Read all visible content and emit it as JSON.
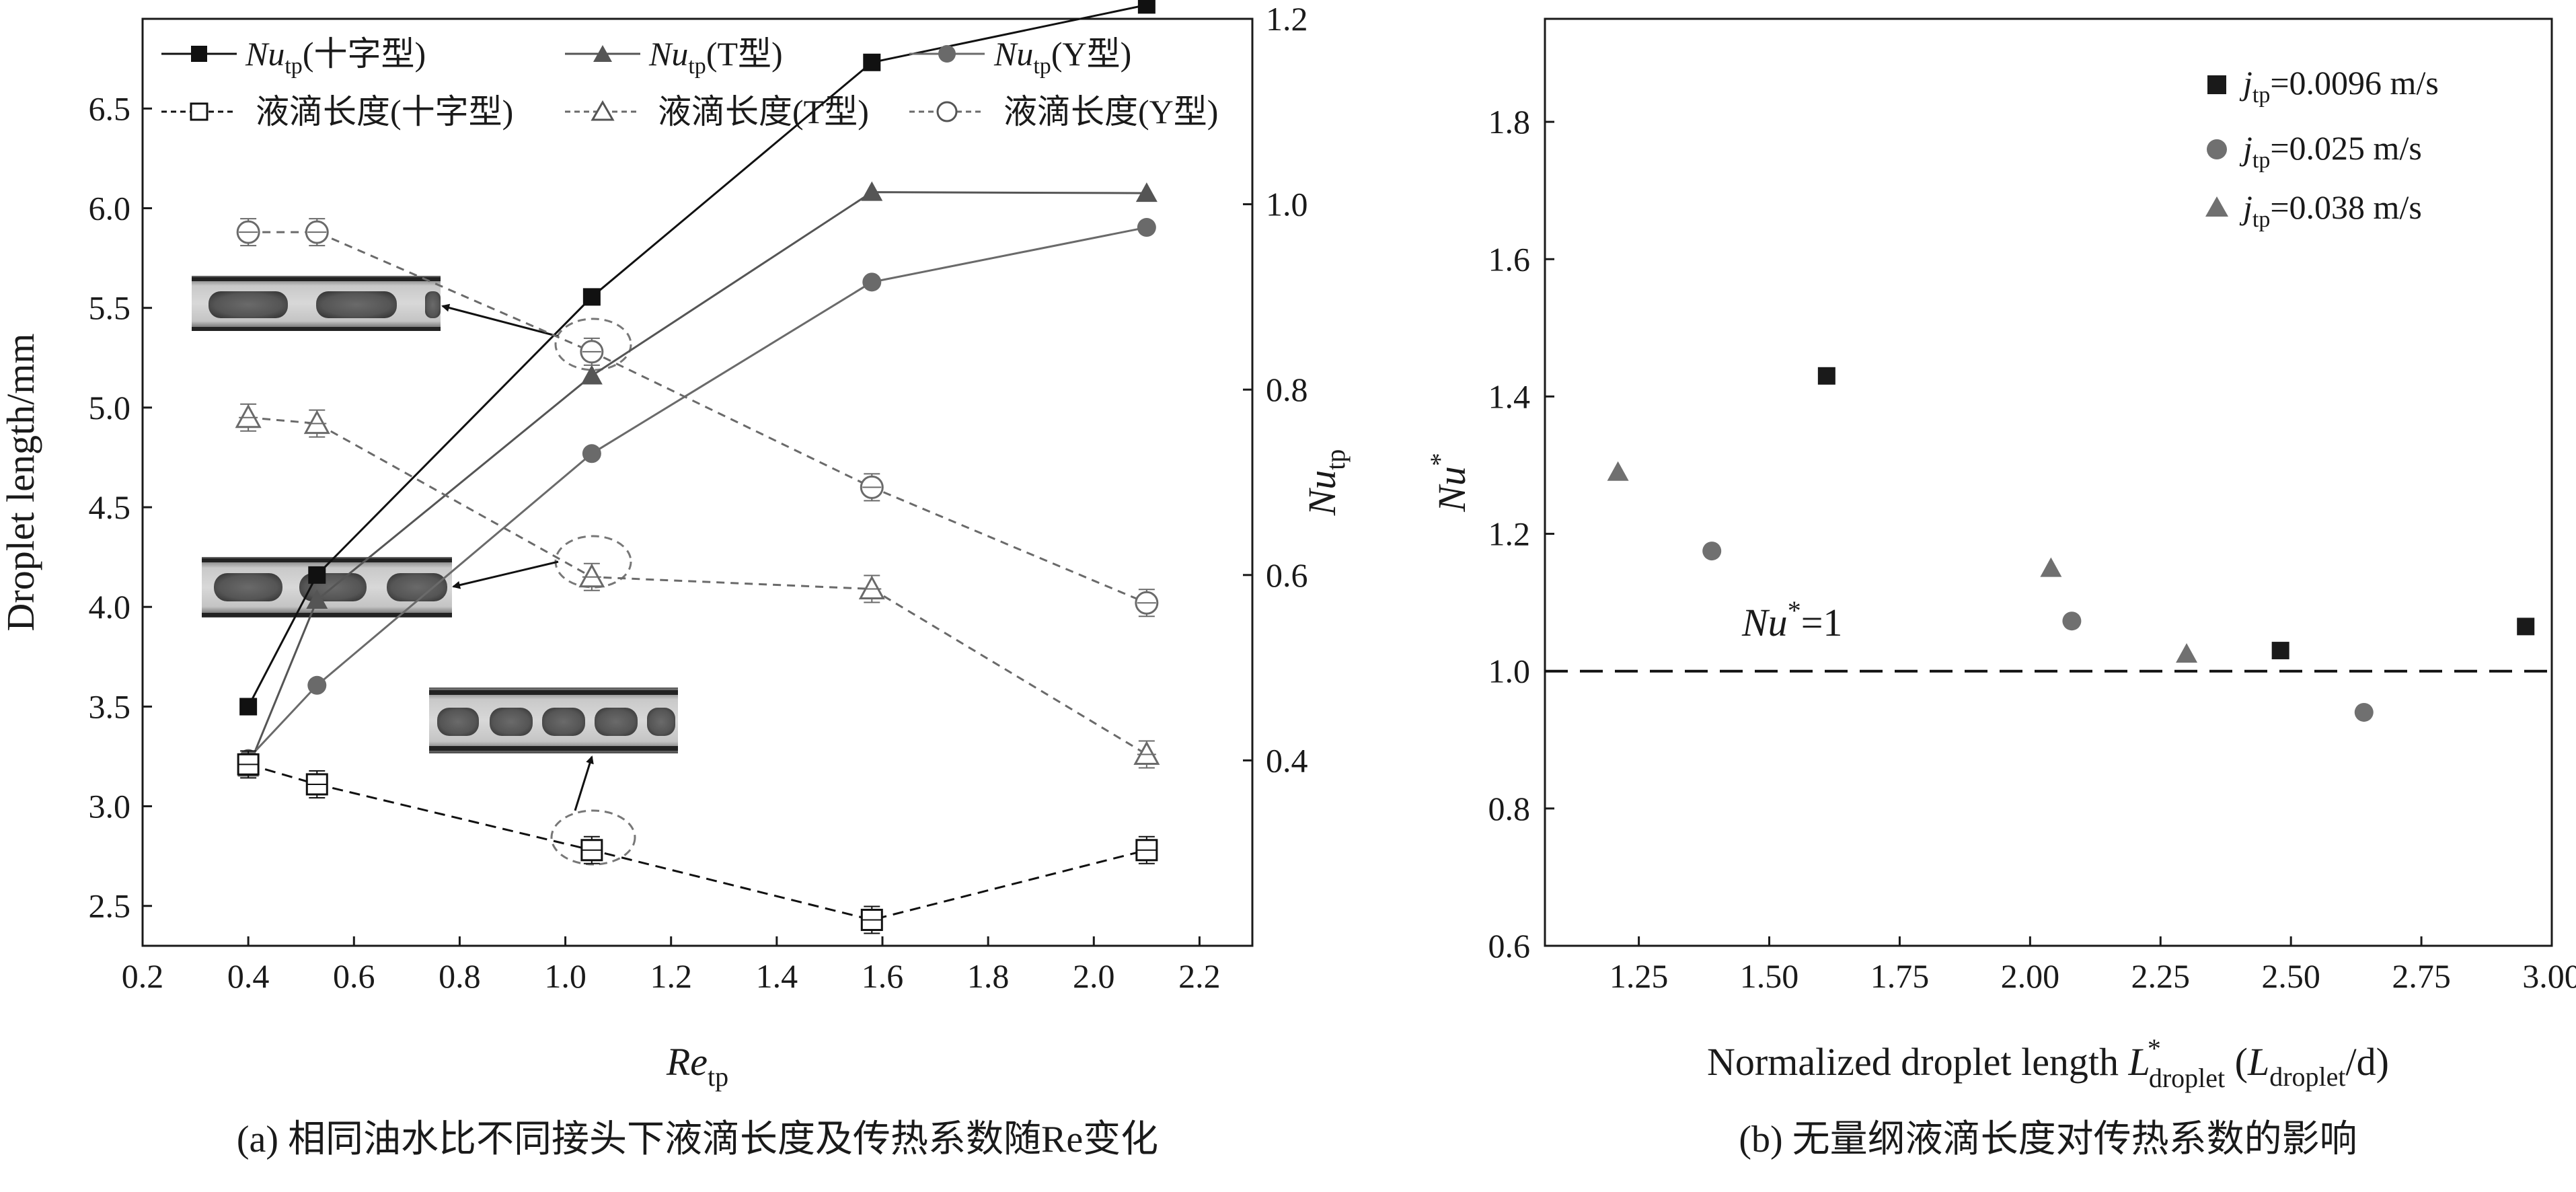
{
  "chart_data": [
    {
      "type": "line",
      "panel": "a",
      "caption": "(a)  相同油水比不同接头下液滴长度及传热系数随Re变化",
      "xlabel": "Re",
      "xlabel_sub": "tp",
      "ylabel_left": "Droplet length/mm",
      "ylabel_right": "Nu",
      "ylabel_right_sub": "tp",
      "xlim": [
        0.2,
        2.3
      ],
      "ylim_left": [
        2.3,
        6.95
      ],
      "ylim_right": [
        0.2,
        1.2
      ],
      "xticks": [
        "0.2",
        "0.4",
        "0.6",
        "0.8",
        "1.0",
        "1.2",
        "1.4",
        "1.6",
        "1.8",
        "2.0",
        "2.2"
      ],
      "yticks_left": [
        "2.5",
        "3.0",
        "3.5",
        "4.0",
        "4.5",
        "5.0",
        "5.5",
        "6.0",
        "6.5"
      ],
      "yticks_right": [
        "0.4",
        "0.6",
        "0.8",
        "1.0",
        "1.2"
      ],
      "legend": [
        {
          "name": "Nu_tp(十字型)",
          "label_main": "Nu",
          "label_sub": "tp",
          "label_tail": "(十字型)"
        },
        {
          "name": "Nu_tp(T型)",
          "label_main": "Nu",
          "label_sub": "tp",
          "label_tail": "(T型)"
        },
        {
          "name": "Nu_tp(Y型)",
          "label_main": "Nu",
          "label_sub": "tp",
          "label_tail": "(Y型)"
        },
        {
          "name": "液滴长度(十字型)",
          "label": "液滴长度(十字型)"
        },
        {
          "name": "液滴长度(T型)",
          "label": "液滴长度(T型)"
        },
        {
          "name": "液滴长度(Y型)",
          "label": "液滴长度(Y型)"
        }
      ],
      "series": [
        {
          "name": "Nu_tp(十字型)",
          "axis": "right",
          "marker": "square-filled",
          "color": "#111111",
          "dash": "",
          "x": [
            0.4,
            0.53,
            1.05,
            1.58,
            2.1
          ],
          "y": [
            0.458,
            0.6,
            0.9,
            1.153,
            1.215
          ]
        },
        {
          "name": "Nu_tp(T型)",
          "axis": "right",
          "marker": "triangle-filled",
          "color": "#555555",
          "dash": "",
          "x": [
            0.4,
            0.53,
            1.05,
            1.58,
            2.1
          ],
          "y": [
            0.392,
            0.573,
            0.815,
            1.013,
            1.012
          ]
        },
        {
          "name": "Nu_tp(Y型)",
          "axis": "right",
          "marker": "circle-filled",
          "color": "#6a6a6a",
          "dash": "",
          "x": [
            0.4,
            0.53,
            1.05,
            1.58,
            2.1
          ],
          "y": [
            0.402,
            0.481,
            0.731,
            0.916,
            0.975
          ]
        },
        {
          "name": "液滴长度(十字型)",
          "axis": "left",
          "marker": "square-open",
          "color": "#111111",
          "dash": "16,10",
          "x": [
            0.4,
            0.53,
            1.05,
            1.58,
            2.1
          ],
          "y": [
            3.21,
            3.11,
            2.78,
            2.43,
            2.78
          ]
        },
        {
          "name": "液滴长度(T型)",
          "axis": "left",
          "marker": "triangle-open",
          "color": "#6a6a6a",
          "dash": "12,9",
          "x": [
            0.4,
            0.53,
            1.05,
            1.58,
            2.1
          ],
          "y": [
            4.95,
            4.92,
            4.15,
            4.09,
            3.26
          ]
        },
        {
          "name": "液滴长度(Y型)",
          "axis": "left",
          "marker": "circle-open",
          "color": "#6a6a6a",
          "dash": "12,9",
          "x": [
            0.4,
            0.53,
            1.05,
            1.58,
            2.1
          ],
          "y": [
            5.88,
            5.88,
            5.28,
            4.6,
            4.02
          ]
        }
      ]
    },
    {
      "type": "scatter",
      "panel": "b",
      "caption": "(b) 无量纲液滴长度对传热系数的影响",
      "xlabel": "Normalized droplet length L*droplet (Ldroplet/d)",
      "xlabel_parts": {
        "pre": "Normalized droplet length ",
        "L": "L",
        "sup": "*",
        "sub": "droplet",
        "paren_open": " (",
        "L2": "L",
        "sub2": "droplet",
        "tail": "/d)"
      },
      "ylabel": "Nu*",
      "ylabel_main": "Nu",
      "ylabel_sup": "*",
      "xlim": [
        1.07,
        3.0
      ],
      "ylim": [
        0.6,
        1.95
      ],
      "xticks": [
        "1.25",
        "1.50",
        "1.75",
        "2.00",
        "2.25",
        "2.50",
        "2.75",
        "3.00"
      ],
      "yticks": [
        "0.6",
        "0.8",
        "1.0",
        "1.2",
        "1.4",
        "1.6",
        "1.8"
      ],
      "reference_line": {
        "y": 1.0,
        "label_main": "Nu",
        "label_sup": "*",
        "label_tail": "=1"
      },
      "legend": [
        {
          "name": "j_tp=0.0096 m/s",
          "j": "j",
          "sub": "tp",
          "tail": "=0.0096 m/s"
        },
        {
          "name": "j_tp=0.025 m/s",
          "j": "j",
          "sub": "tp",
          "tail": "=0.025 m/s"
        },
        {
          "name": "j_tp=0.038 m/s",
          "j": "j",
          "sub": "tp",
          "tail": "=0.038 m/s"
        }
      ],
      "series": [
        {
          "name": "j_tp=0.0096 m/s",
          "marker": "square-filled",
          "color": "#1a1a1a",
          "x": [
            1.61,
            2.48,
            2.95
          ],
          "y": [
            1.43,
            1.03,
            1.065
          ]
        },
        {
          "name": "j_tp=0.025 m/s",
          "marker": "circle-filled",
          "color": "#707070",
          "x": [
            1.39,
            2.08,
            2.64
          ],
          "y": [
            1.175,
            1.073,
            0.94
          ]
        },
        {
          "name": "j_tp=0.038 m/s",
          "marker": "triangle-filled",
          "color": "#707070",
          "x": [
            1.21,
            2.04,
            2.3
          ],
          "y": [
            1.29,
            1.15,
            1.025
          ]
        }
      ]
    }
  ]
}
